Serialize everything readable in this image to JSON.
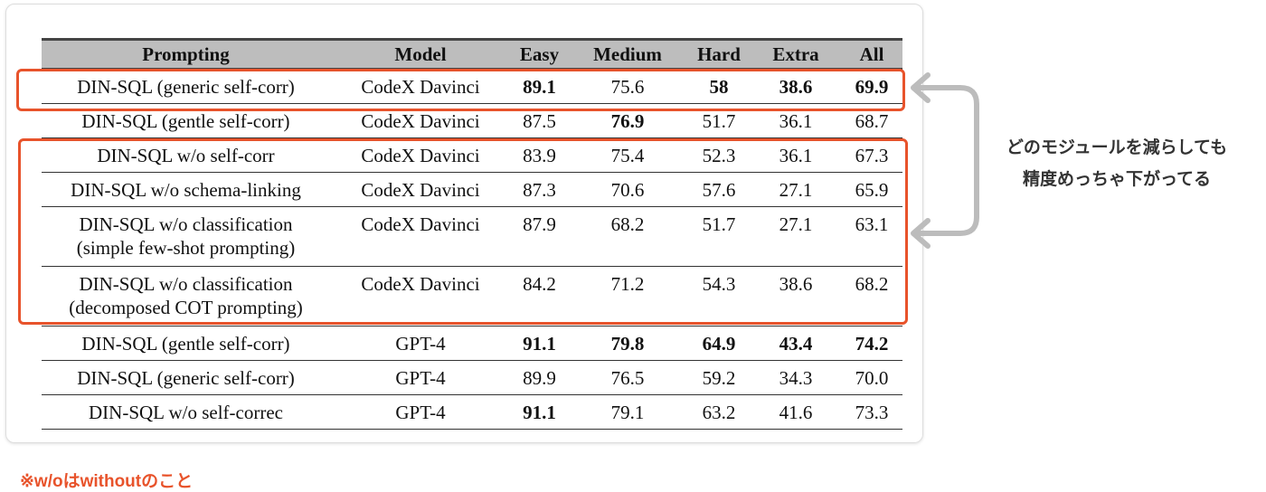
{
  "table": {
    "header": [
      "Prompting",
      "Model",
      "Easy",
      "Medium",
      "Hard",
      "Extra",
      "All"
    ],
    "rows": [
      [
        "DIN-SQL (generic self-corr)",
        "CodeX Davinci",
        "89.1",
        "75.6",
        "58",
        "38.6",
        "69.9"
      ],
      [
        "DIN-SQL (gentle self-corr)",
        "CodeX Davinci",
        "87.5",
        "76.9",
        "51.7",
        "36.1",
        "68.7"
      ],
      [
        "DIN-SQL w/o self-corr",
        "CodeX Davinci",
        "83.9",
        "75.4",
        "52.3",
        "36.1",
        "67.3"
      ],
      [
        "DIN-SQL w/o schema-linking",
        "CodeX Davinci",
        "87.3",
        "70.6",
        "57.6",
        "27.1",
        "65.9"
      ],
      [
        [
          "DIN-SQL w/o classification",
          "(simple few-shot prompting)"
        ],
        "CodeX Davinci",
        "87.9",
        "68.2",
        "51.7",
        "27.1",
        "63.1"
      ],
      [
        [
          "DIN-SQL w/o classification",
          "(decomposed COT prompting)"
        ],
        "CodeX Davinci",
        "84.2",
        "71.2",
        "54.3",
        "38.6",
        "68.2"
      ],
      [
        "DIN-SQL (gentle self-corr)",
        "GPT-4",
        "91.1",
        "79.8",
        "64.9",
        "43.4",
        "74.2"
      ],
      [
        "DIN-SQL (generic self-corr)",
        "GPT-4",
        "89.9",
        "76.5",
        "59.2",
        "34.3",
        "70.0"
      ],
      [
        "DIN-SQL w/o self-correc",
        "GPT-4",
        "91.1",
        "79.1",
        "63.2",
        "41.6",
        "73.3"
      ]
    ]
  },
  "annotation": [
    "どのモジュールを減らしても",
    "精度めっちゃ下がってる"
  ],
  "footnote": "※w/oはwithoutのこと"
}
